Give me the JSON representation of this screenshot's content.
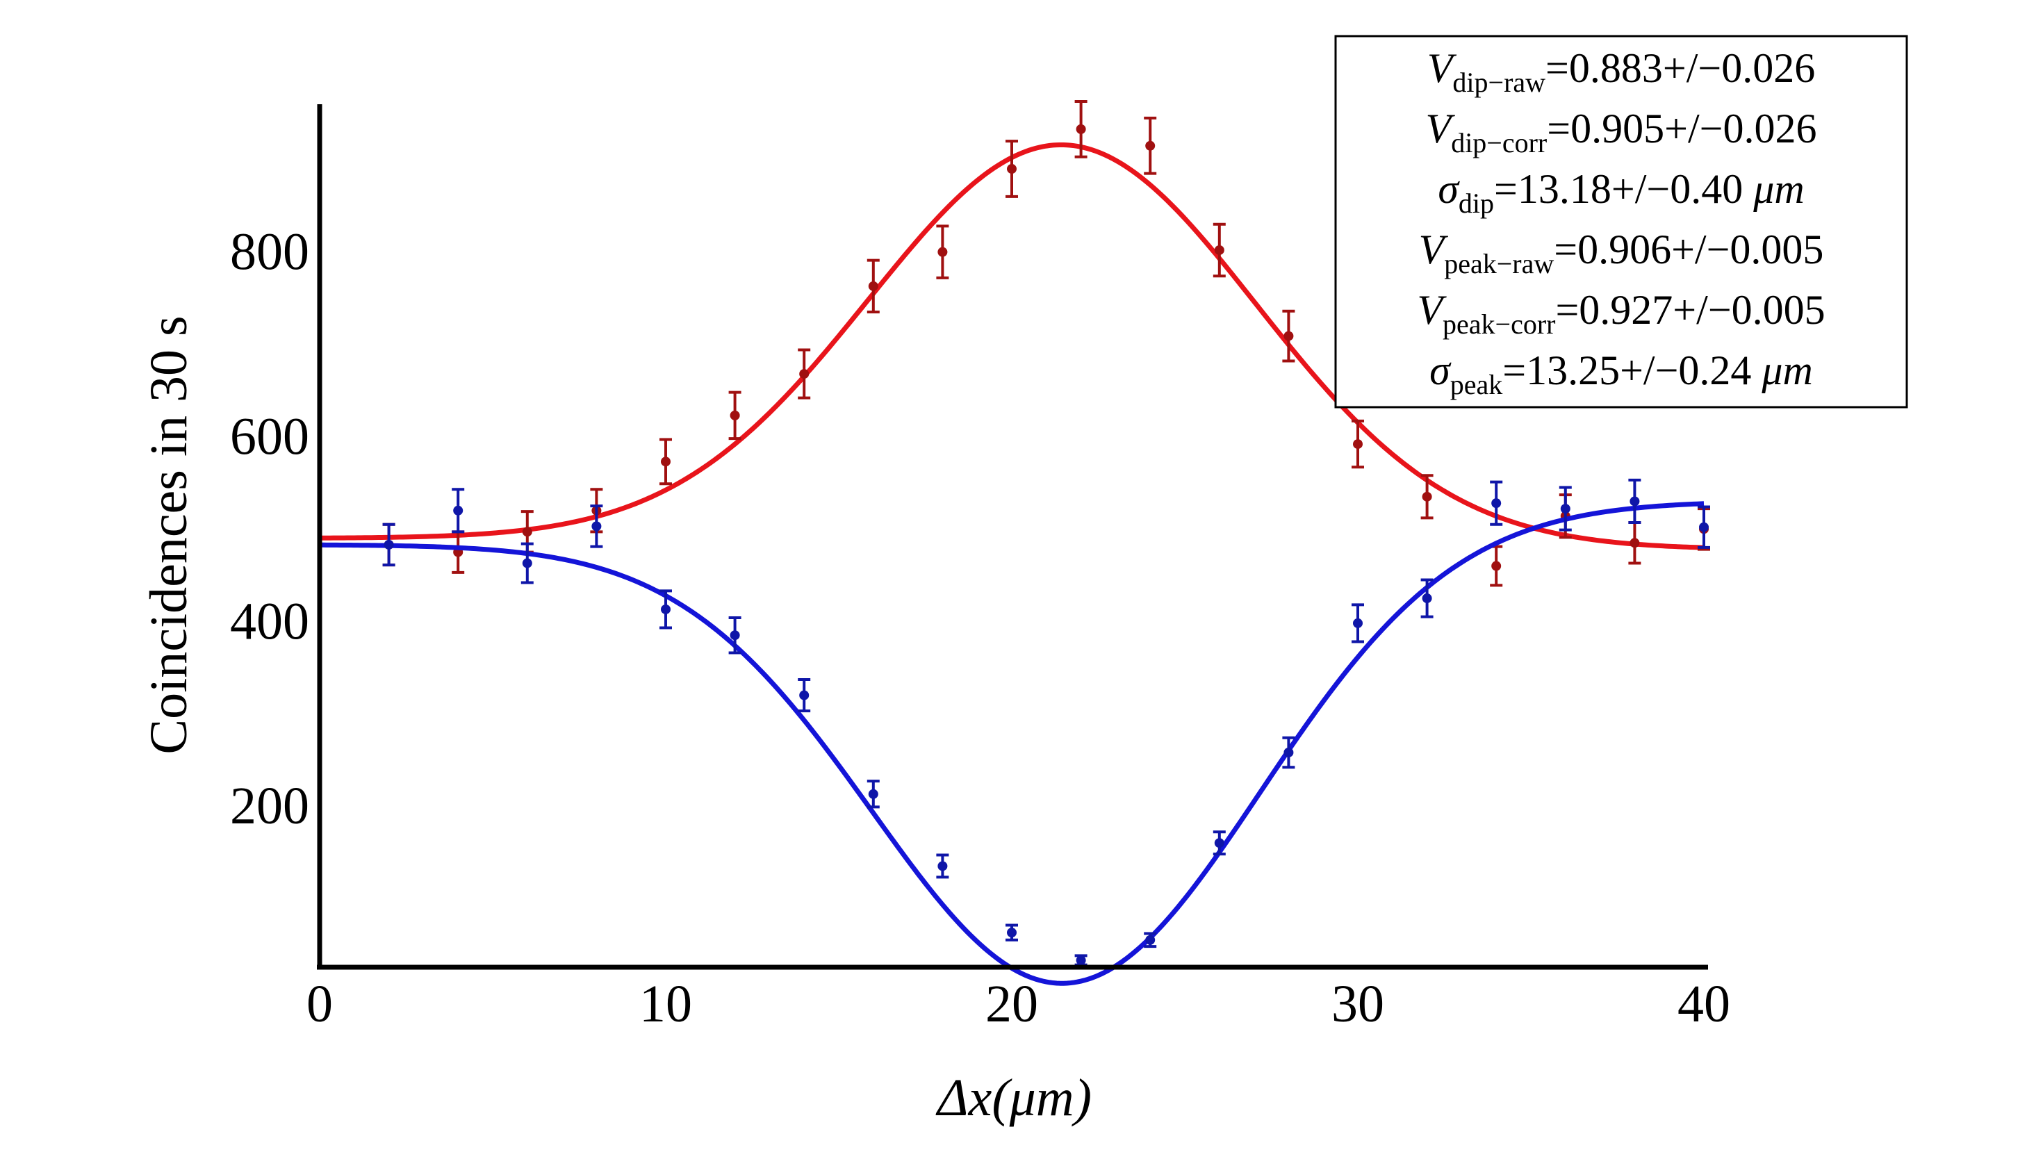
{
  "chart_data": {
    "type": "scatter",
    "title": "",
    "xlabel_main": "Δx(",
    "xlabel_unit": "μm",
    "xlabel_close": ")",
    "ylabel": "Coincidences in 30 s",
    "xlim": [
      0,
      40
    ],
    "ylim": [
      30,
      960
    ],
    "x_ticks": [
      0,
      10,
      20,
      30,
      40
    ],
    "y_ticks": [
      200,
      400,
      600,
      800
    ],
    "colors": {
      "peak_curve": "#e8141b",
      "peak_points": "#a01010",
      "dip_curve": "#1414d8",
      "dip_points": "#0f16a8"
    },
    "series": [
      {
        "name": "peak",
        "x": [
          2,
          4,
          6,
          8,
          10,
          12,
          14,
          16,
          18,
          20,
          22,
          24,
          26,
          28,
          30,
          32,
          34,
          36,
          38,
          40
        ],
        "y": [
          483,
          475,
          497,
          520,
          573,
          623,
          668,
          763,
          800,
          890,
          933,
          915,
          802,
          709,
          592,
          535,
          460,
          514,
          485,
          500
        ],
        "err": [
          22,
          22,
          22,
          23,
          24,
          25,
          26,
          28,
          28,
          30,
          30,
          30,
          28,
          27,
          25,
          23,
          21,
          23,
          22,
          22
        ],
        "fit": {
          "baseline_left": 490,
          "baseline_right": 478,
          "amplitude": 432,
          "center": 21.5,
          "sigma": 5.6
        }
      },
      {
        "name": "dip",
        "x": [
          2,
          4,
          6,
          8,
          10,
          12,
          14,
          16,
          18,
          20,
          22,
          24,
          26,
          28,
          30,
          32,
          34,
          36,
          38,
          40
        ],
        "y": [
          483,
          520,
          463,
          503,
          413,
          385,
          320,
          213,
          135,
          63,
          33,
          55,
          160,
          258,
          398,
          425,
          528,
          522,
          530,
          502
        ],
        "err": [
          22,
          23,
          21,
          22,
          20,
          19,
          17,
          14,
          12,
          8,
          5,
          7,
          12,
          16,
          20,
          20,
          23,
          23,
          23,
          22
        ],
        "fit": {
          "baseline_left": 483,
          "baseline_right": 530,
          "amplitude": -498,
          "center": 21.7,
          "sigma": 5.6
        }
      }
    ],
    "legend": {
      "position": "top-right",
      "entries": [
        {
          "sym": "V",
          "sub": "dip−raw",
          "value": "=0.883+/−0.026",
          "unit": ""
        },
        {
          "sym": "V",
          "sub": "dip−corr",
          "value": "=0.905+/−0.026",
          "unit": ""
        },
        {
          "sym": "σ",
          "sub": "dip",
          "value": "=13.18+/−0.40 ",
          "unit": "μm"
        },
        {
          "sym": "V",
          "sub": "peak−raw",
          "value": "=0.906+/−0.005",
          "unit": ""
        },
        {
          "sym": "V",
          "sub": "peak−corr",
          "value": "=0.927+/−0.005",
          "unit": ""
        },
        {
          "sym": "σ",
          "sub": "peak",
          "value": "=13.25+/−0.24 ",
          "unit": "μm"
        }
      ]
    }
  }
}
